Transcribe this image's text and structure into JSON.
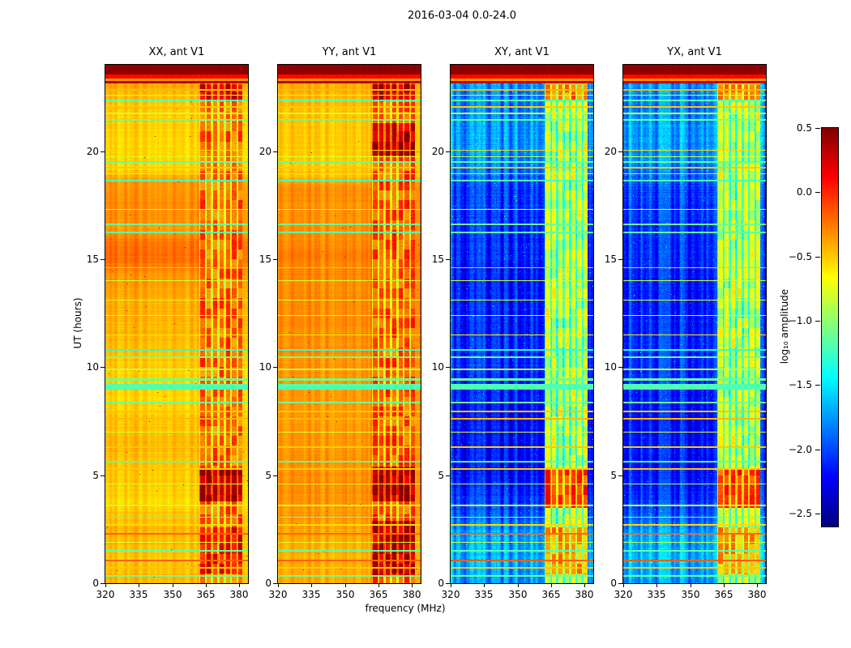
{
  "chart_data": {
    "type": "heatmap",
    "title": "2016-03-04 0.0-24.0",
    "xlabel": "frequency (MHz)",
    "ylabel": "UT (hours)",
    "x_range": [
      320,
      384
    ],
    "y_range": [
      0,
      24
    ],
    "x_ticks": [
      320,
      335,
      350,
      365,
      380
    ],
    "x_tick_labels": [
      "320",
      "335",
      "350",
      "365",
      "380"
    ],
    "y_ticks": [
      0,
      5,
      10,
      15,
      20
    ],
    "y_tick_labels": [
      "0",
      "5",
      "10",
      "15",
      "20"
    ],
    "colormap": "jet",
    "value_range": [
      -2.6,
      0.5
    ],
    "grid": false,
    "colorbar": {
      "label": "log₁₀ amplitude",
      "ticks": [
        0.5,
        0.0,
        -0.5,
        -1.0,
        -1.5,
        -2.0,
        -2.5
      ],
      "tick_labels": [
        "0.5",
        "0.0",
        "−0.5",
        "−1.0",
        "−1.5",
        "−2.0",
        "−2.5"
      ]
    },
    "panels": [
      {
        "id": "XX",
        "title": "XX, ant V1",
        "kind": "auto",
        "seed": 11,
        "rfi_base": -0.3,
        "rfi_boosts": [
          [
            0.4,
            2.6,
            0.3
          ],
          [
            3.8,
            5.3,
            0.55
          ],
          [
            22.3,
            23.1,
            0.45
          ]
        ],
        "profile": [
          [
            0,
            -0.45
          ],
          [
            1.2,
            -0.5
          ],
          [
            2.5,
            -0.45
          ],
          [
            3.8,
            -0.55
          ],
          [
            5.2,
            -0.5
          ],
          [
            6.5,
            -0.45
          ],
          [
            7.6,
            -0.5
          ],
          [
            8.6,
            -0.55
          ],
          [
            10.5,
            -0.5
          ],
          [
            11.5,
            -0.45
          ],
          [
            13,
            -0.42
          ],
          [
            14.3,
            -0.35
          ],
          [
            15,
            -0.22
          ],
          [
            15.8,
            -0.25
          ],
          [
            16.4,
            -0.38
          ],
          [
            17,
            -0.32
          ],
          [
            18.6,
            -0.35
          ],
          [
            19.2,
            -0.55
          ],
          [
            20.5,
            -0.55
          ],
          [
            21.5,
            -0.52
          ],
          [
            22.3,
            -0.5
          ],
          [
            23,
            -0.42
          ]
        ]
      },
      {
        "id": "YY",
        "title": "YY, ant V1",
        "kind": "auto",
        "seed": 12,
        "rfi_base": -0.25,
        "rfi_boosts": [
          [
            0.3,
            2.9,
            0.45
          ],
          [
            3.8,
            5.4,
            0.5
          ],
          [
            19.8,
            21.3,
            0.45
          ],
          [
            22.3,
            23.1,
            0.5
          ]
        ],
        "profile": [
          [
            0,
            -0.38
          ],
          [
            1.5,
            -0.42
          ],
          [
            3,
            -0.35
          ],
          [
            4.5,
            -0.3
          ],
          [
            6,
            -0.33
          ],
          [
            8,
            -0.35
          ],
          [
            10,
            -0.32
          ],
          [
            12,
            -0.3
          ],
          [
            14,
            -0.3
          ],
          [
            15.2,
            -0.25
          ],
          [
            16.5,
            -0.32
          ],
          [
            18.3,
            -0.3
          ],
          [
            18.8,
            -0.45
          ],
          [
            19.5,
            -0.5
          ],
          [
            21,
            -0.48
          ],
          [
            22.3,
            -0.45
          ],
          [
            23,
            -0.4
          ]
        ]
      },
      {
        "id": "XY",
        "title": "XY, ant V1",
        "kind": "cross",
        "seed": 13,
        "rfi_base": -0.92,
        "rfi_boosts": [
          [
            0.4,
            2.6,
            0.45
          ],
          [
            3.5,
            5.3,
            0.75
          ],
          [
            22.3,
            23.1,
            0.55
          ]
        ],
        "profile": [
          [
            0,
            -1.75
          ],
          [
            0.9,
            -1.65
          ],
          [
            2.4,
            -1.7
          ],
          [
            3.2,
            -1.95
          ],
          [
            5,
            -2.15
          ],
          [
            8,
            -2.15
          ],
          [
            10,
            -2.05
          ],
          [
            12,
            -2.1
          ],
          [
            14,
            -2.1
          ],
          [
            16,
            -2.05
          ],
          [
            18.3,
            -2.0
          ],
          [
            19,
            -1.85
          ],
          [
            19.8,
            -1.75
          ],
          [
            21,
            -1.7
          ],
          [
            22,
            -1.8
          ],
          [
            23,
            -1.75
          ]
        ]
      },
      {
        "id": "YX",
        "title": "YX, ant V1",
        "kind": "cross",
        "seed": 14,
        "rfi_base": -0.92,
        "rfi_boosts": [
          [
            0.4,
            2.6,
            0.45
          ],
          [
            3.5,
            5.3,
            0.75
          ],
          [
            22.3,
            23.1,
            0.55
          ]
        ],
        "profile": [
          [
            0,
            -1.75
          ],
          [
            0.9,
            -1.65
          ],
          [
            2.4,
            -1.7
          ],
          [
            3.2,
            -1.95
          ],
          [
            5,
            -2.15
          ],
          [
            8,
            -2.15
          ],
          [
            10,
            -2.05
          ],
          [
            12,
            -2.1
          ],
          [
            14,
            -2.1
          ],
          [
            16,
            -2.05
          ],
          [
            18.3,
            -2.0
          ],
          [
            19,
            -1.85
          ],
          [
            19.8,
            -1.75
          ],
          [
            21,
            -1.7
          ],
          [
            22,
            -1.8
          ],
          [
            23,
            -1.75
          ]
        ]
      }
    ],
    "features": {
      "stripes": [
        [
          0.35,
          -1.1,
          0.035
        ],
        [
          0.7,
          -0.5,
          0.035
        ],
        [
          1.05,
          -0.18,
          0.035
        ],
        [
          1.5,
          -1.15,
          0.035
        ],
        [
          1.9,
          -0.8,
          0.03
        ],
        [
          2.3,
          -0.2,
          0.035
        ],
        [
          2.7,
          -0.55,
          0.03
        ],
        [
          3.05,
          -1.1,
          0.03
        ],
        [
          3.6,
          -0.8,
          0.03
        ],
        [
          4.6,
          -0.85,
          0.025
        ],
        [
          5.3,
          -0.5,
          0.035
        ],
        [
          5.62,
          -1.15,
          0.035
        ],
        [
          6.3,
          -0.5,
          0.03
        ],
        [
          7.0,
          -0.8,
          0.03
        ],
        [
          7.6,
          -0.45,
          0.035
        ],
        [
          7.95,
          -0.5,
          0.03
        ],
        [
          8.35,
          -1.1,
          0.035
        ],
        [
          9.1,
          -1.2,
          0.13
        ],
        [
          9.42,
          -1.1,
          0.06
        ],
        [
          9.9,
          -0.85,
          0.03
        ],
        [
          10.45,
          -1.1,
          0.035
        ],
        [
          10.8,
          -1.3,
          0.03
        ],
        [
          11.5,
          -0.6,
          0.02
        ],
        [
          12.4,
          -0.75,
          0.025
        ],
        [
          13.1,
          -0.75,
          0.025
        ],
        [
          14.0,
          -0.8,
          0.03
        ],
        [
          14.6,
          -0.5,
          0.03
        ],
        [
          16.25,
          -1.15,
          0.035
        ],
        [
          16.6,
          -1.1,
          0.035
        ],
        [
          17.3,
          -0.75,
          0.025
        ],
        [
          18.65,
          -1.2,
          0.035
        ],
        [
          18.95,
          -0.8,
          0.03
        ],
        [
          19.25,
          -0.5,
          0.035
        ],
        [
          19.5,
          -1.15,
          0.035
        ],
        [
          19.75,
          -0.8,
          0.03
        ],
        [
          20.05,
          -0.55,
          0.03
        ],
        [
          21.45,
          -1.1,
          0.035
        ],
        [
          21.75,
          -0.8,
          0.03
        ],
        [
          22.05,
          -0.5,
          0.035
        ],
        [
          22.35,
          -1.15,
          0.035
        ],
        [
          22.6,
          -0.75,
          0.03
        ],
        [
          22.85,
          -0.45,
          0.035
        ]
      ],
      "top_band": {
        "layers": [
          [
            23.15,
            23.25,
            0.32
          ],
          [
            23.25,
            23.38,
            -0.35
          ],
          [
            23.38,
            23.55,
            0.1
          ],
          [
            23.55,
            24.01,
            0.45
          ]
        ]
      },
      "rfi": {
        "f_start": 362.2,
        "f_end": 381.4,
        "comb_start": 363.6,
        "comb_step": 2.85,
        "comb_halfwidth": 0.95,
        "in_band_delta": 0.12,
        "gap_delta": -0.38
      }
    }
  }
}
